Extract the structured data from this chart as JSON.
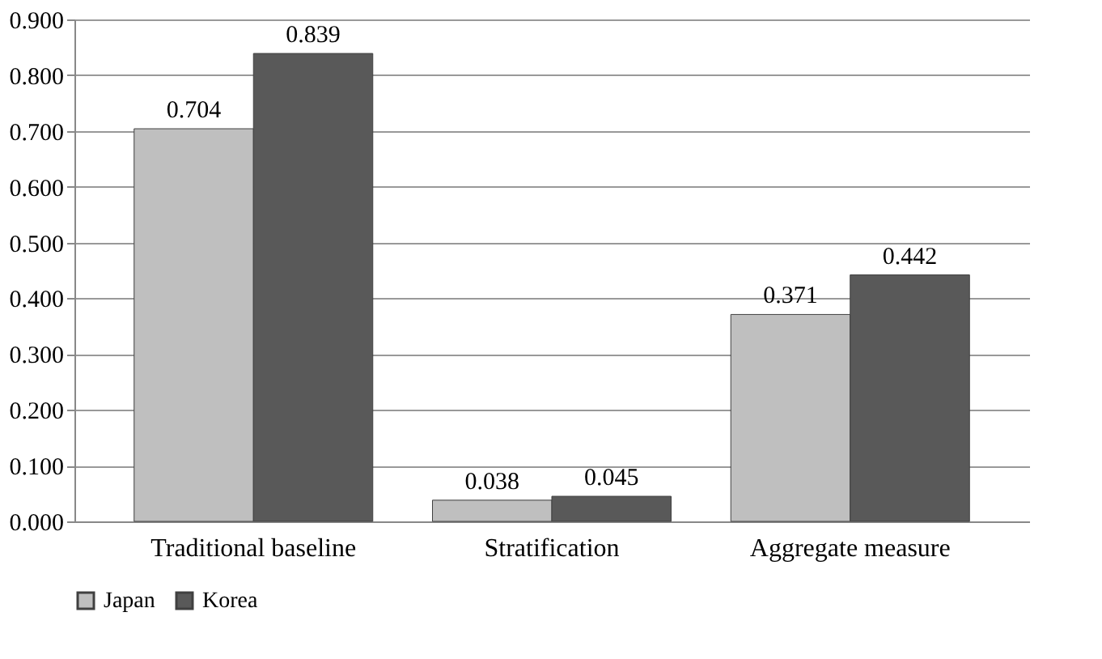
{
  "chart_data": {
    "type": "bar",
    "categories": [
      "Traditional baseline",
      "Stratification",
      "Aggregate measure"
    ],
    "series": [
      {
        "name": "Japan",
        "color": "#bfbfbf",
        "values": [
          0.704,
          0.038,
          0.371
        ]
      },
      {
        "name": "Korea",
        "color": "#595959",
        "values": [
          0.839,
          0.045,
          0.442
        ]
      }
    ],
    "ylim": [
      0,
      0.9
    ],
    "yticks": [
      {
        "value": 0,
        "label": "0.000"
      },
      {
        "value": 0.1,
        "label": "0.100"
      },
      {
        "value": 0.2,
        "label": "0.200"
      },
      {
        "value": 0.3,
        "label": "0.300"
      },
      {
        "value": 0.4,
        "label": "0.400"
      },
      {
        "value": 0.5,
        "label": "0.500"
      },
      {
        "value": 0.6,
        "label": "0.600"
      },
      {
        "value": 0.7,
        "label": "0.700"
      },
      {
        "value": 0.8,
        "label": "0.800"
      },
      {
        "value": 0.9,
        "label": "0.900"
      }
    ],
    "grid": "y",
    "legend": "bottom",
    "data_labels": true
  }
}
